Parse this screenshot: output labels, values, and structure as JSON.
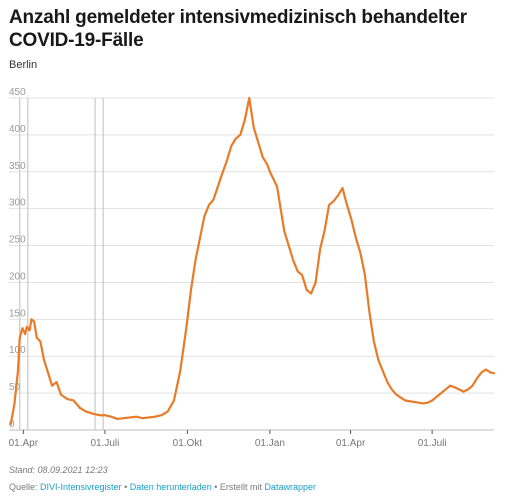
{
  "title": "Anzahl gemeldeter intensivmedizinisch behandelter COVID-19-Fälle",
  "subtitle": "Berlin",
  "footer": {
    "stand": "Stand: 08.09.2021 12:23",
    "source_prefix": "Quelle: ",
    "source_link": "DIVI-Intensivregister",
    "sep1": " • ",
    "download_link": "Daten herunterladen",
    "sep2": " • Erstellt mit ",
    "datawrapper_link": "Datawrapper"
  },
  "colors": {
    "line": "#e87b27",
    "grid": "#e2e2e2",
    "reference_lines": "#c8c8c8",
    "link": "#18a1cd"
  },
  "chart_data": {
    "type": "line",
    "title": "Anzahl gemeldeter intensivmedizinisch behandelter COVID-19-Fälle",
    "subtitle": "Berlin",
    "xlabel": "",
    "ylabel": "",
    "ylim": [
      0,
      450
    ],
    "yticks": [
      0,
      50,
      100,
      150,
      200,
      250,
      300,
      350,
      400,
      450
    ],
    "xlim": [
      "2020-03-16",
      "2021-09-08"
    ],
    "xticks": [
      {
        "date": "2020-04-01",
        "label": "01.Apr"
      },
      {
        "date": "2020-07-01",
        "label": "01.Juli"
      },
      {
        "date": "2020-10-01",
        "label": "01.Okt"
      },
      {
        "date": "2021-01-01",
        "label": "01.Jan"
      },
      {
        "date": "2021-04-01",
        "label": "01.Apr"
      },
      {
        "date": "2021-07-01",
        "label": "01.Juli"
      }
    ],
    "grid": true,
    "reference_lines": [
      "2020-03-28",
      "2020-04-06",
      "2020-06-20",
      "2020-06-29"
    ],
    "series": [
      {
        "x": [
          "2020-03-18",
          "2020-03-22",
          "2020-03-26",
          "2020-03-28",
          "2020-03-31",
          "2020-04-03",
          "2020-04-05",
          "2020-04-08",
          "2020-04-10",
          "2020-04-13",
          "2020-04-16",
          "2020-04-20",
          "2020-04-24",
          "2020-04-28",
          "2020-05-03",
          "2020-05-08",
          "2020-05-13",
          "2020-05-20",
          "2020-05-27",
          "2020-06-03",
          "2020-06-10",
          "2020-06-18",
          "2020-06-25",
          "2020-07-01",
          "2020-07-08",
          "2020-07-15",
          "2020-07-22",
          "2020-07-29",
          "2020-08-05",
          "2020-08-12",
          "2020-08-19",
          "2020-08-26",
          "2020-09-02",
          "2020-09-09",
          "2020-09-16",
          "2020-09-23",
          "2020-09-30",
          "2020-10-05",
          "2020-10-10",
          "2020-10-15",
          "2020-10-20",
          "2020-10-25",
          "2020-10-30",
          "2020-11-04",
          "2020-11-09",
          "2020-11-14",
          "2020-11-19",
          "2020-11-24",
          "2020-11-29",
          "2020-12-04",
          "2020-12-09",
          "2020-12-14",
          "2020-12-19",
          "2020-12-24",
          "2020-12-29",
          "2021-01-01",
          "2021-01-05",
          "2021-01-09",
          "2021-01-13",
          "2021-01-17",
          "2021-01-22",
          "2021-01-27",
          "2021-02-01",
          "2021-02-06",
          "2021-02-11",
          "2021-02-16",
          "2021-02-21",
          "2021-02-26",
          "2021-03-03",
          "2021-03-08",
          "2021-03-13",
          "2021-03-18",
          "2021-03-23",
          "2021-03-28",
          "2021-04-02",
          "2021-04-07",
          "2021-04-12",
          "2021-04-17",
          "2021-04-22",
          "2021-04-27",
          "2021-05-02",
          "2021-05-07",
          "2021-05-12",
          "2021-05-17",
          "2021-05-22",
          "2021-05-27",
          "2021-06-01",
          "2021-06-06",
          "2021-06-11",
          "2021-06-16",
          "2021-06-21",
          "2021-06-26",
          "2021-07-01",
          "2021-07-06",
          "2021-07-11",
          "2021-07-16",
          "2021-07-21",
          "2021-07-26",
          "2021-07-31",
          "2021-08-05",
          "2021-08-10",
          "2021-08-15",
          "2021-08-20",
          "2021-08-25",
          "2021-08-30",
          "2021-09-04",
          "2021-09-08"
        ],
        "y": [
          8,
          35,
          80,
          125,
          138,
          130,
          140,
          135,
          150,
          147,
          125,
          120,
          95,
          80,
          60,
          65,
          48,
          42,
          40,
          30,
          25,
          22,
          20,
          20,
          18,
          15,
          16,
          17,
          18,
          16,
          17,
          18,
          20,
          25,
          40,
          80,
          140,
          190,
          230,
          260,
          290,
          305,
          312,
          330,
          348,
          365,
          385,
          395,
          400,
          420,
          450,
          410,
          390,
          370,
          360,
          350,
          340,
          330,
          300,
          270,
          250,
          230,
          215,
          210,
          190,
          185,
          200,
          245,
          270,
          305,
          310,
          318,
          328,
          305,
          285,
          260,
          240,
          210,
          160,
          120,
          95,
          80,
          65,
          55,
          48,
          44,
          40,
          39,
          38,
          37,
          36,
          37,
          40,
          45,
          50,
          55,
          60,
          58,
          55,
          52,
          55,
          60,
          70,
          78,
          82,
          78,
          77
        ]
      }
    ]
  }
}
